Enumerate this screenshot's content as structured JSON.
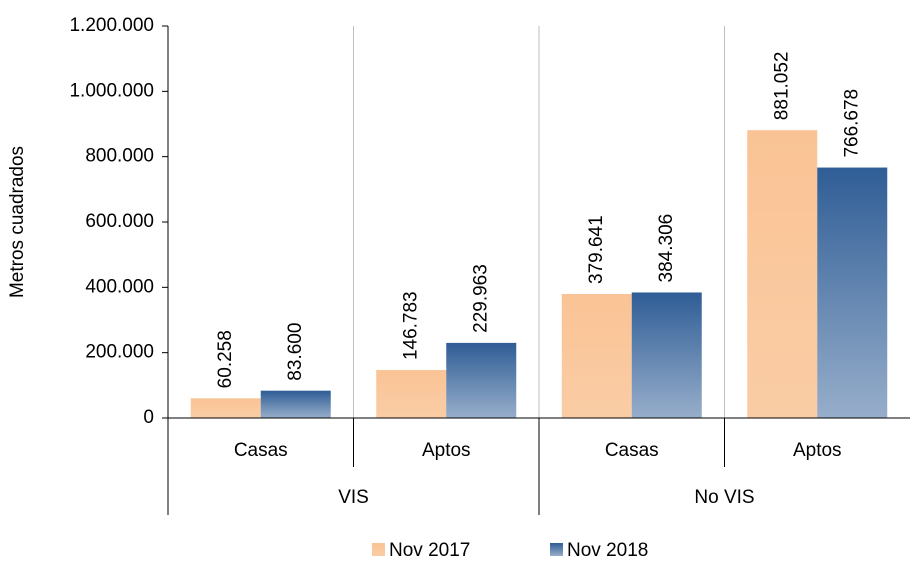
{
  "chart_data": {
    "type": "bar",
    "y_axis_label": "Metros cuadrados",
    "categories": [
      "Casas",
      "Aptos",
      "Casas",
      "Aptos"
    ],
    "groups": [
      "VIS",
      "No VIS"
    ],
    "series": [
      {
        "name": "Nov 2017",
        "color": "#f9c08f",
        "values": [
          60258,
          146783,
          379641,
          881052
        ],
        "value_labels": [
          "60.258",
          "146.783",
          "379.641",
          "881.052"
        ]
      },
      {
        "name": "Nov 2018",
        "color": "#2f5d96",
        "values": [
          83600,
          229963,
          384306,
          766678
        ],
        "value_labels": [
          "83.600",
          "229.963",
          "384.306",
          "766.678"
        ]
      }
    ],
    "ylim": [
      0,
      1200000
    ],
    "yticks": [
      0,
      {
        "value": 200000,
        "label": "200.000"
      },
      {
        "value": 400000,
        "label": "400.000"
      },
      {
        "value": 600000,
        "label": "600.000"
      },
      {
        "value": 800000,
        "label": "800.000"
      },
      {
        "value": 1000000,
        "label": "1.000.000"
      },
      {
        "value": 1200000,
        "label": "1.200.000"
      }
    ],
    "legend": "bottom"
  }
}
